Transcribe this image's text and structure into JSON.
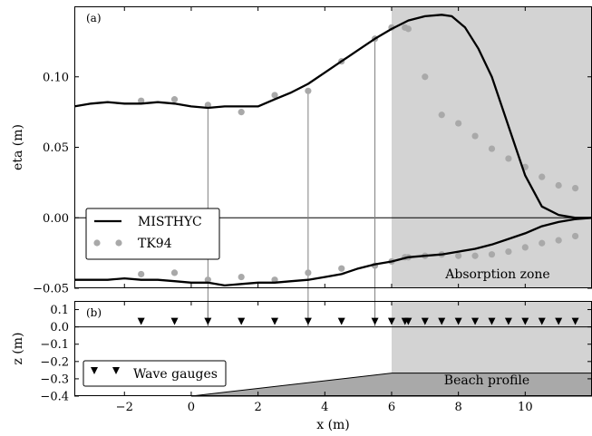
{
  "chart_data": [
    {
      "type": "line",
      "panel_label": "(a)",
      "xlabel": "",
      "ylabel": "eta (m)",
      "xlim": [
        -3.5,
        12
      ],
      "ylim": [
        -0.05,
        0.15
      ],
      "yticks": [
        -0.05,
        0.0,
        0.05,
        0.1
      ],
      "ytick_labels": [
        "−0.05",
        "0.00",
        "0.05",
        "0.10"
      ],
      "shaded_region": {
        "x_from": 6,
        "label": "Absorption zone"
      },
      "gauge_lines_x": [
        0.5,
        3.5,
        5.5
      ],
      "legend": {
        "placement": "lower-left",
        "entries": [
          {
            "name": "MISTHYC",
            "style": "line"
          },
          {
            "name": "TK94",
            "style": "dots"
          }
        ]
      },
      "series": [
        {
          "name": "MISTHYC",
          "role": "crest envelope",
          "x": [
            -3.5,
            -3.0,
            -2.5,
            -2.0,
            -1.5,
            -1.0,
            -0.5,
            0.0,
            0.5,
            1.0,
            1.5,
            2.0,
            2.5,
            3.0,
            3.5,
            4.0,
            4.5,
            5.0,
            5.5,
            6.0,
            6.5,
            7.0,
            7.5,
            7.8,
            8.2,
            8.6,
            9.0,
            9.5,
            10.0,
            10.5,
            11.0,
            11.5,
            12.0
          ],
          "y": [
            0.079,
            0.081,
            0.082,
            0.081,
            0.081,
            0.082,
            0.081,
            0.079,
            0.078,
            0.079,
            0.079,
            0.079,
            0.084,
            0.089,
            0.095,
            0.103,
            0.111,
            0.119,
            0.127,
            0.134,
            0.14,
            0.143,
            0.144,
            0.143,
            0.135,
            0.12,
            0.1,
            0.065,
            0.03,
            0.008,
            0.002,
            0.0,
            0.0
          ]
        },
        {
          "name": "MISTHYC",
          "role": "trough envelope",
          "x": [
            -3.5,
            -3.0,
            -2.5,
            -2.0,
            -1.5,
            -1.0,
            -0.5,
            0.0,
            0.5,
            1.0,
            1.5,
            2.0,
            2.5,
            3.0,
            3.5,
            4.0,
            4.5,
            5.0,
            5.5,
            6.0,
            6.5,
            7.0,
            7.5,
            8.0,
            8.5,
            9.0,
            9.5,
            10.0,
            10.5,
            11.0,
            11.5,
            12.0
          ],
          "y": [
            -0.044,
            -0.044,
            -0.044,
            -0.043,
            -0.044,
            -0.044,
            -0.045,
            -0.046,
            -0.046,
            -0.048,
            -0.047,
            -0.046,
            -0.046,
            -0.045,
            -0.044,
            -0.042,
            -0.04,
            -0.036,
            -0.033,
            -0.031,
            -0.028,
            -0.027,
            -0.026,
            -0.024,
            -0.022,
            -0.019,
            -0.015,
            -0.011,
            -0.006,
            -0.003,
            -0.001,
            0.0
          ]
        },
        {
          "name": "TK94",
          "role": "crest points",
          "x": [
            -1.5,
            -0.5,
            0.5,
            1.5,
            2.5,
            3.5,
            4.5,
            5.5,
            6.0,
            6.4,
            6.5,
            7.0,
            7.5,
            8.0,
            8.5,
            9.0,
            9.5,
            10.0,
            10.5,
            11.0,
            11.5
          ],
          "y": [
            0.083,
            0.084,
            0.08,
            0.075,
            0.087,
            0.09,
            0.111,
            0.127,
            0.135,
            0.135,
            0.134,
            0.1,
            0.073,
            0.067,
            0.058,
            0.049,
            0.042,
            0.036,
            0.029,
            0.023,
            0.021
          ]
        },
        {
          "name": "TK94",
          "role": "trough points",
          "x": [
            -1.5,
            -0.5,
            0.5,
            1.5,
            2.5,
            3.5,
            4.5,
            5.5,
            6.0,
            6.4,
            6.5,
            7.0,
            7.5,
            8.0,
            8.5,
            9.0,
            9.5,
            10.0,
            10.5,
            11.0,
            11.5
          ],
          "y": [
            -0.04,
            -0.039,
            -0.044,
            -0.042,
            -0.044,
            -0.039,
            -0.036,
            -0.034,
            -0.031,
            -0.028,
            -0.028,
            -0.027,
            -0.026,
            -0.027,
            -0.027,
            -0.026,
            -0.024,
            -0.021,
            -0.018,
            -0.016,
            -0.013
          ]
        }
      ]
    },
    {
      "type": "scatter",
      "panel_label": "(b)",
      "xlabel": "x (m)",
      "ylabel": "z (m)",
      "xlim": [
        -3.5,
        12
      ],
      "ylim": [
        -0.4,
        0.15
      ],
      "xticks": [
        -2,
        0,
        2,
        4,
        6,
        8,
        10
      ],
      "xtick_labels": [
        "−2",
        "0",
        "2",
        "4",
        "6",
        "8",
        "10"
      ],
      "yticks": [
        -0.4,
        -0.3,
        -0.2,
        -0.1,
        0.0,
        0.1
      ],
      "ytick_labels": [
        "−0.4",
        "−0.3",
        "−0.2",
        "−0.1",
        "0.0",
        "0.1"
      ],
      "shaded_region": {
        "x_from": 6
      },
      "gauges": {
        "name": "Wave gauges",
        "y": 0.0,
        "x": [
          -1.5,
          -0.5,
          0.5,
          1.5,
          2.5,
          3.5,
          4.5,
          5.5,
          6.0,
          6.4,
          6.5,
          7.0,
          7.5,
          8.0,
          8.5,
          9.0,
          9.5,
          10.0,
          10.5,
          11.0,
          11.5
        ]
      },
      "beach_profile": {
        "label": "Beach profile",
        "x": [
          0.0,
          6.0,
          12.0
        ],
        "y": [
          -0.4,
          -0.267,
          -0.267
        ]
      },
      "legend": {
        "placement": "lower-left",
        "entries": [
          {
            "name": "Wave gauges",
            "style": "triangles"
          }
        ]
      }
    }
  ]
}
